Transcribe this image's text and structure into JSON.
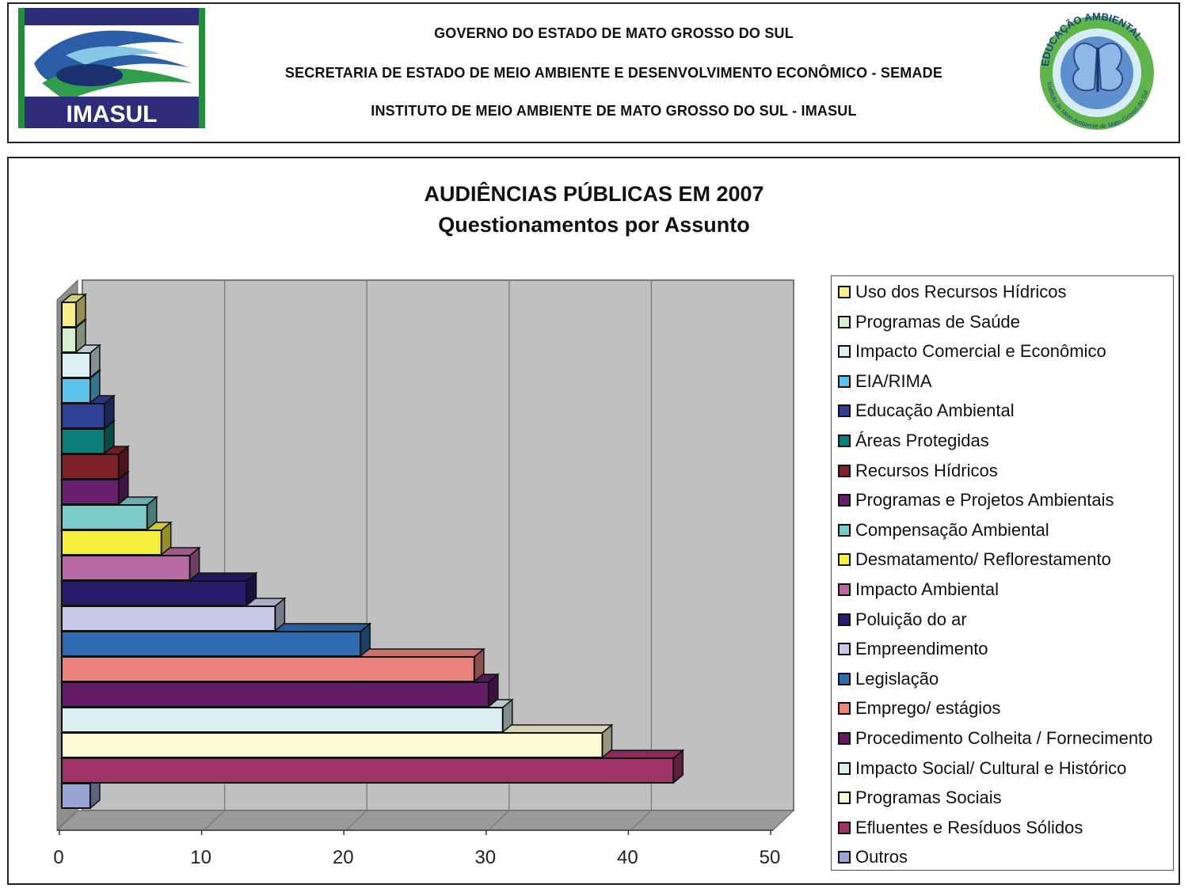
{
  "header": {
    "line1": "GOVERNO DO ESTADO DE MATO GROSSO DO SUL",
    "line2": "SECRETARIA DE ESTADO DE MEIO AMBIENTE E DESENVOLVIMENTO ECONÔMICO - SEMADE",
    "line3": "INSTITUTO DE MEIO AMBIENTE DE MATO GROSSO DO SUL - IMASUL",
    "logo_left_text": "IMASUL",
    "logo_right_text_top": "EDUCAÇÃO AMBIENTAL",
    "logo_right_text_bottom": "Instituto de Meio Ambiente de Mato Grosso do Sul"
  },
  "chart_data": {
    "type": "bar",
    "orientation": "horizontal",
    "style": "3d",
    "title": "AUDIÊNCIAS PÚBLICAS EM 2007",
    "subtitle": "Questionamentos por Assunto",
    "xlim": [
      0,
      50
    ],
    "xticks": [
      "0",
      "10",
      "20",
      "30",
      "40",
      "50"
    ],
    "grid": true,
    "legend_position": "right",
    "categories": [
      "Uso dos Recursos Hídricos",
      "Programas de Saúde",
      "Impacto Comercial e Econômico",
      "EIA/RIMA",
      "Educação Ambiental",
      "Áreas Protegidas",
      "Recursos Hídricos",
      "Programas e Projetos Ambientais",
      "Compensação Ambiental",
      "Desmatamento/ Reflorestamento",
      "Impacto Ambiental",
      "Poluição do ar",
      "Empreendimento",
      "Legislação",
      "Emprego/ estágios",
      "Procedimento Colheita / Fornecimento",
      "Impacto Social/ Cultural e Histórico",
      "Programas Sociais",
      "Efluentes e Resíduos Sólidos",
      "Outros"
    ],
    "values": [
      1,
      1,
      2,
      2,
      3,
      3,
      4,
      4,
      6,
      7,
      9,
      13,
      15,
      21,
      29,
      30,
      31,
      38,
      43,
      2
    ],
    "colors": [
      "#f7f08a",
      "#d8efcf",
      "#daf0f4",
      "#5ec3ea",
      "#2f3f93",
      "#0b7f7a",
      "#7e2228",
      "#68206e",
      "#7ccbca",
      "#f3ef3b",
      "#b86aa2",
      "#2a1a6b",
      "#c7cbe8",
      "#2f6bb0",
      "#eb847d",
      "#621d66",
      "#d9eeee",
      "#fdfbd6",
      "#a03366",
      "#9ba5d5"
    ]
  }
}
